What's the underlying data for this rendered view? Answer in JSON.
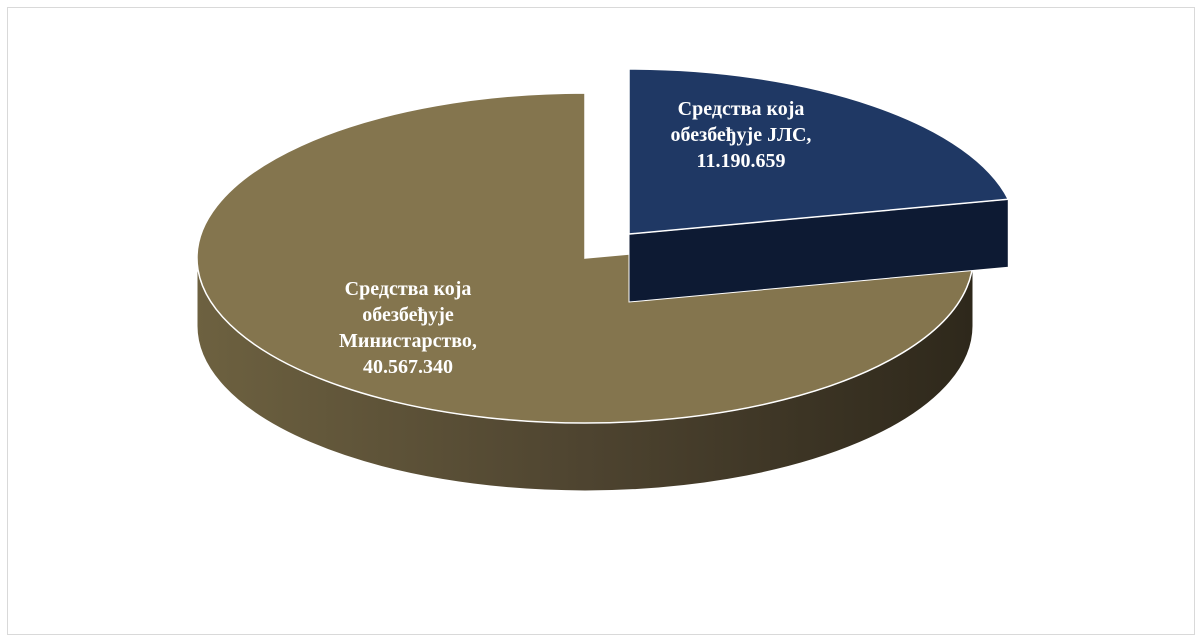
{
  "chart_data": {
    "type": "pie",
    "style": "3d-exploded",
    "categories": [
      "Средства која обезбеђује ЈЛС",
      "Средства која обезбеђује Министарство"
    ],
    "values": [
      11190659,
      40567340
    ],
    "series": [
      {
        "name": "",
        "slices": [
          {
            "label_lines": [
              "Средства која",
              "обезбеђује ЈЛС,",
              "11.190.659"
            ],
            "value": 11190659,
            "color_top": "#1f3864",
            "color_side": "#0d1a33",
            "exploded": true
          },
          {
            "label_lines": [
              "Средства која",
              "обезбеђује",
              "Министарство,",
              "40.567.340"
            ],
            "value": 40567340,
            "color_top": "#84754e",
            "color_side": "#4e4430",
            "exploded": false
          }
        ]
      }
    ],
    "title": "",
    "legend": "none"
  }
}
